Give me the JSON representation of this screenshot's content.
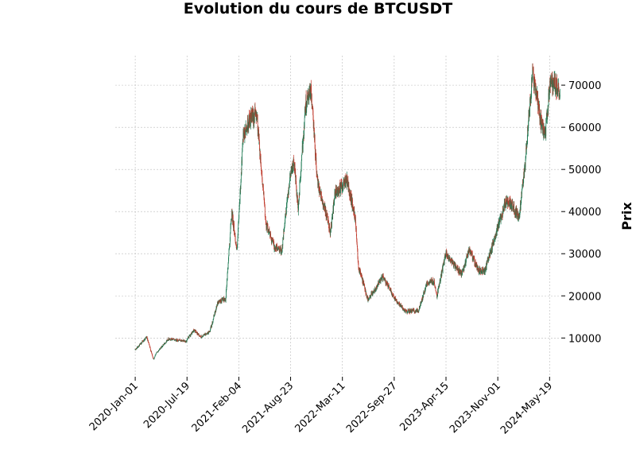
{
  "chart_data": {
    "type": "candlestick",
    "title": "Evolution du cours de BTCUSDT",
    "ylabel": "Prix",
    "xlabel": "",
    "y_axis_side": "right",
    "ylim": [
      1000,
      77000
    ],
    "yticks": [
      10000,
      20000,
      30000,
      40000,
      50000,
      60000,
      70000
    ],
    "xtick_labels": [
      "2020-Jan-01",
      "2020-Jul-19",
      "2021-Feb-04",
      "2021-Aug-23",
      "2022-Mar-11",
      "2022-Sep-27",
      "2023-Apr-15",
      "2023-Nov-01",
      "2024-May-19"
    ],
    "xtick_dates": [
      "2020-01-01",
      "2020-07-19",
      "2021-02-04",
      "2021-08-23",
      "2022-03-11",
      "2022-09-27",
      "2023-04-15",
      "2023-11-01",
      "2024-05-19"
    ],
    "xlim": [
      "2019-10-16",
      "2024-06-30"
    ],
    "grid": true,
    "colors": {
      "up": "#1f7a54",
      "down": "#c0392b",
      "grid": "#bbbbbb"
    },
    "price_path": {
      "dates": [
        "2020-01-01",
        "2020-02-14",
        "2020-03-12",
        "2020-03-20",
        "2020-05-08",
        "2020-07-15",
        "2020-08-15",
        "2020-09-10",
        "2020-10-15",
        "2020-11-15",
        "2020-12-15",
        "2021-01-08",
        "2021-01-28",
        "2021-02-20",
        "2021-03-13",
        "2021-04-14",
        "2021-05-19",
        "2021-06-22",
        "2021-07-20",
        "2021-08-23",
        "2021-09-06",
        "2021-09-21",
        "2021-10-20",
        "2021-11-10",
        "2021-12-04",
        "2022-01-24",
        "2022-02-10",
        "2022-03-28",
        "2022-04-30",
        "2022-05-12",
        "2022-06-18",
        "2022-08-14",
        "2022-09-30",
        "2022-11-09",
        "2022-12-30",
        "2023-01-31",
        "2023-02-28",
        "2023-03-10",
        "2023-04-14",
        "2023-06-15",
        "2023-07-14",
        "2023-08-17",
        "2023-09-11",
        "2023-10-24",
        "2023-12-05",
        "2024-01-23",
        "2024-02-15",
        "2024-03-14",
        "2024-04-17",
        "2024-05-01",
        "2024-05-21",
        "2024-06-07",
        "2024-06-28"
      ],
      "close": [
        7200,
        10200,
        4900,
        6200,
        9800,
        9200,
        11900,
        10200,
        11500,
        18500,
        19200,
        40000,
        30500,
        57000,
        61200,
        63500,
        37500,
        31500,
        30800,
        49500,
        51500,
        40500,
        65500,
        68500,
        47500,
        35000,
        44000,
        47500,
        38500,
        27000,
        19000,
        24500,
        19400,
        16300,
        16500,
        23000,
        23500,
        19800,
        30000,
        25000,
        31000,
        26000,
        25800,
        34500,
        43000,
        39000,
        51500,
        73000,
        61000,
        57500,
        71000,
        70500,
        68000
      ]
    }
  }
}
